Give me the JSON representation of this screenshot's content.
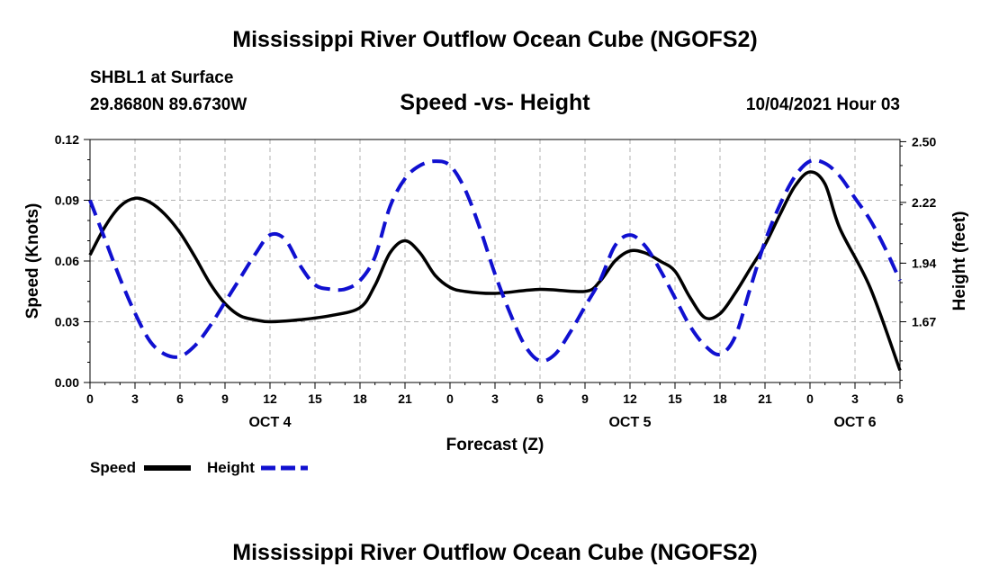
{
  "page": {
    "title_top": "Mississippi River Outflow Ocean Cube (NGOFS2)",
    "title_bottom": "Mississippi River Outflow Ocean Cube (NGOFS2)",
    "station": "SHBL1 at Surface",
    "coords": "29.8680N  89.6730W",
    "subtitle": "Speed -vs- Height",
    "datetime": "10/04/2021 Hour 03"
  },
  "colors": {
    "speed": "#000000",
    "height": "#1010d0",
    "grid": "#b0b0b0"
  },
  "chart_data": {
    "type": "line",
    "xlabel": "Forecast (Z)",
    "xlim": [
      0,
      54
    ],
    "x_ticks": [
      0,
      3,
      6,
      9,
      12,
      15,
      18,
      21,
      24,
      27,
      30,
      33,
      36,
      39,
      42,
      45,
      48,
      51,
      54
    ],
    "x_tick_labels": [
      "0",
      "3",
      "6",
      "9",
      "12",
      "15",
      "18",
      "21",
      "0",
      "3",
      "6",
      "9",
      "12",
      "15",
      "18",
      "21",
      "0",
      "3",
      "6"
    ],
    "day_labels": [
      {
        "x": 12,
        "label": "OCT 4"
      },
      {
        "x": 36,
        "label": "OCT 5"
      },
      {
        "x": 51,
        "label": "OCT 6"
      }
    ],
    "y_left": {
      "label": "Speed (Knots)",
      "lim": [
        0,
        0.12
      ],
      "ticks": [
        0,
        0.03,
        0.06,
        0.09,
        0.12
      ],
      "tick_labels": [
        "0.00",
        "0.03",
        "0.06",
        "0.09",
        "0.12"
      ]
    },
    "y_right": {
      "label": "Height (feet)",
      "lim": [
        1.39,
        2.51
      ],
      "ticks": [
        1.67,
        1.94,
        2.22,
        2.5
      ],
      "tick_labels": [
        "1.67",
        "1.94",
        "2.22",
        "2.50"
      ]
    },
    "series": [
      {
        "name": "Speed",
        "axis": "left",
        "style": "solid",
        "x": [
          0,
          1,
          2,
          3,
          4,
          5,
          6,
          7,
          8,
          9,
          10,
          11,
          12,
          14,
          16,
          18,
          19,
          20,
          21,
          22,
          23,
          24,
          25,
          27,
          30,
          33,
          34,
          35,
          36,
          37,
          38,
          39,
          40,
          41,
          42,
          43,
          44,
          45,
          46,
          47,
          48,
          49,
          50,
          52,
          54
        ],
        "values": [
          0.063,
          0.077,
          0.087,
          0.091,
          0.089,
          0.083,
          0.074,
          0.062,
          0.049,
          0.039,
          0.033,
          0.031,
          0.03,
          0.031,
          0.033,
          0.037,
          0.048,
          0.064,
          0.07,
          0.064,
          0.053,
          0.047,
          0.045,
          0.044,
          0.046,
          0.045,
          0.05,
          0.06,
          0.065,
          0.064,
          0.06,
          0.055,
          0.042,
          0.032,
          0.034,
          0.044,
          0.056,
          0.068,
          0.083,
          0.097,
          0.104,
          0.098,
          0.076,
          0.047,
          0.006
        ]
      },
      {
        "name": "Height",
        "axis": "right",
        "style": "dashed",
        "x": [
          0,
          1,
          2,
          3,
          4,
          5,
          6,
          7,
          8,
          9,
          10,
          11,
          12,
          13,
          14,
          15,
          16,
          17,
          18,
          19,
          20,
          21,
          22,
          23,
          24,
          25,
          26,
          27,
          28,
          29,
          30,
          31,
          32,
          33,
          34,
          35,
          36,
          37,
          38,
          39,
          40,
          41,
          42,
          43,
          44,
          45,
          46,
          47,
          48,
          49,
          50,
          51,
          52,
          53,
          54
        ],
        "values": [
          2.23,
          2.05,
          1.87,
          1.71,
          1.58,
          1.52,
          1.51,
          1.56,
          1.65,
          1.76,
          1.87,
          1.98,
          2.07,
          2.05,
          1.93,
          1.84,
          1.82,
          1.82,
          1.86,
          1.97,
          2.2,
          2.33,
          2.39,
          2.41,
          2.39,
          2.28,
          2.1,
          1.89,
          1.71,
          1.56,
          1.49,
          1.52,
          1.62,
          1.74,
          1.86,
          2.02,
          2.07,
          2.02,
          1.91,
          1.78,
          1.65,
          1.56,
          1.52,
          1.6,
          1.82,
          2.04,
          2.21,
          2.34,
          2.41,
          2.4,
          2.34,
          2.24,
          2.14,
          2.01,
          1.86
        ]
      }
    ],
    "legend": {
      "position": "bottom-left",
      "entries": [
        "Speed",
        "Height"
      ]
    }
  }
}
